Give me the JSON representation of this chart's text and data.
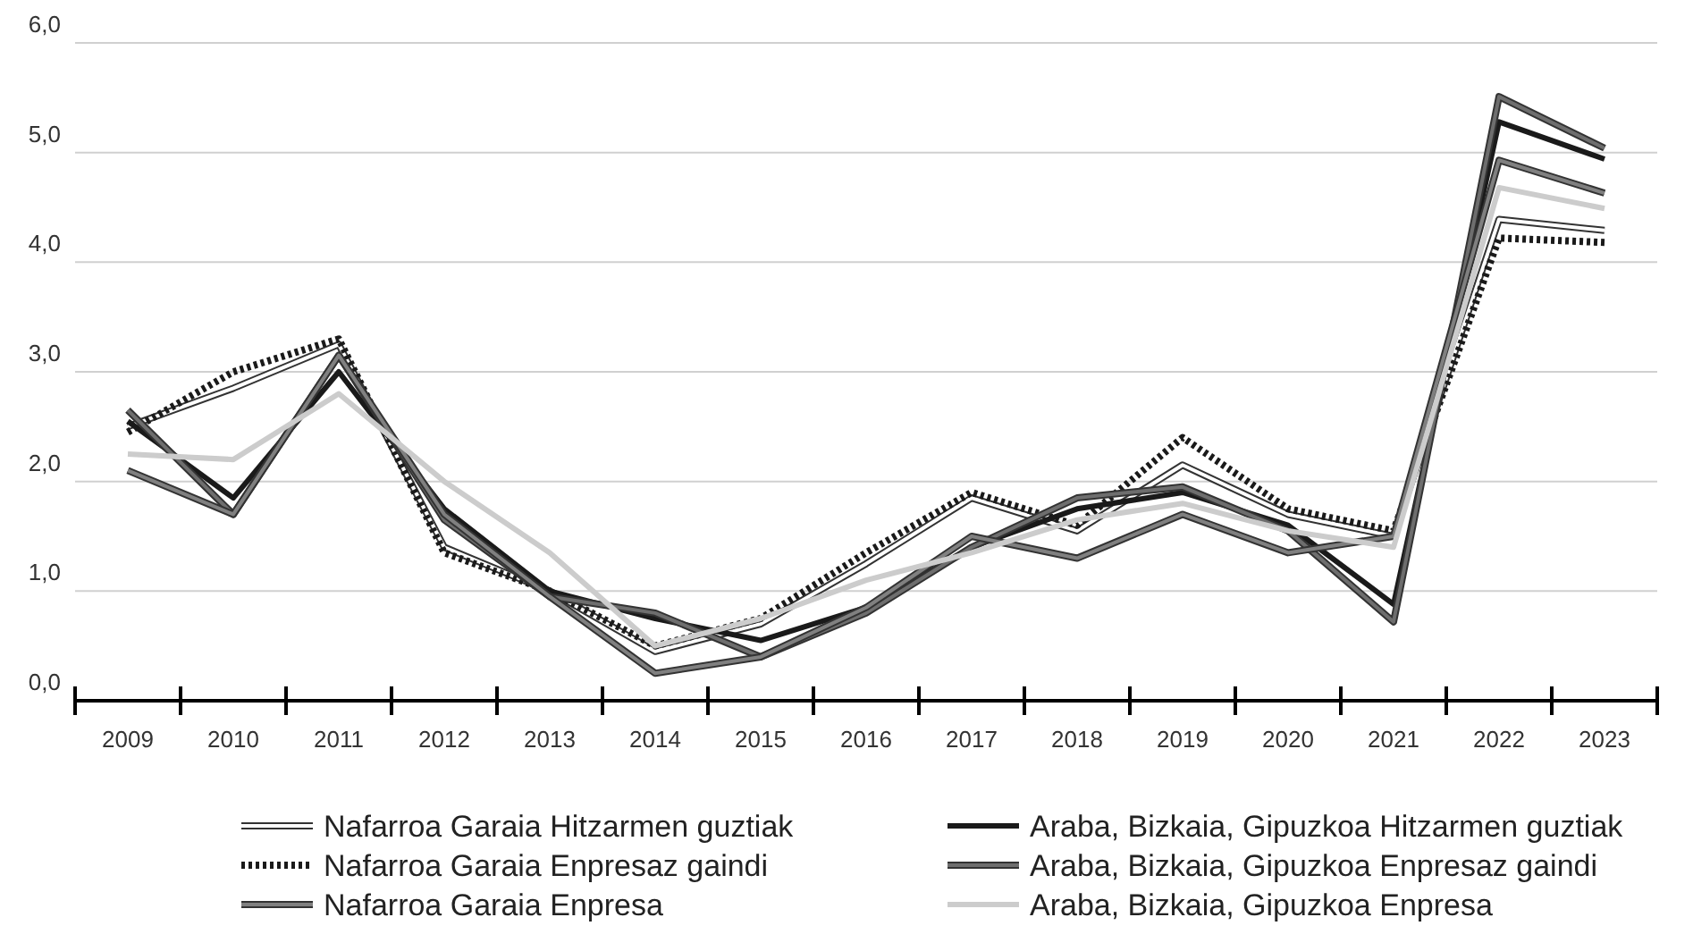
{
  "chart_data": {
    "type": "line",
    "categories": [
      "2009",
      "2010",
      "2011",
      "2012",
      "2013",
      "2014",
      "2015",
      "2016",
      "2017",
      "2018",
      "2019",
      "2020",
      "2021",
      "2022",
      "2023"
    ],
    "ylim": [
      0,
      6
    ],
    "yticks": [
      {
        "value": 0,
        "label": "0,0"
      },
      {
        "value": 1,
        "label": "1,0"
      },
      {
        "value": 2,
        "label": "2,0"
      },
      {
        "value": 3,
        "label": "3,0"
      },
      {
        "value": 4,
        "label": "4,0"
      },
      {
        "value": 5,
        "label": "5,0"
      },
      {
        "value": 6,
        "label": "6,0"
      }
    ],
    "grid": "y",
    "legend": "bottom",
    "marker": "none",
    "series": [
      {
        "name": "Nafarroa Garaia Hitzarmen guztiak",
        "color": "#ffffff",
        "values": [
          2.5,
          2.85,
          3.25,
          1.4,
          1.0,
          0.45,
          0.7,
          1.25,
          1.85,
          1.55,
          2.15,
          1.7,
          1.5,
          4.39,
          4.29
        ]
      },
      {
        "name": "Araba, Bizkaia, Gipuzkoa Hitzarmen guztiak",
        "color": "#1a1a1a",
        "values": [
          2.55,
          1.85,
          3.0,
          1.75,
          1.0,
          0.75,
          0.55,
          0.85,
          1.4,
          1.75,
          1.9,
          1.6,
          0.88,
          5.28,
          4.94
        ]
      },
      {
        "name": "Nafarroa Garaia Enpresaz gaindi",
        "color": "#1a1a1a",
        "line_style": "dotted",
        "values": [
          2.45,
          3.0,
          3.3,
          1.35,
          1.0,
          0.5,
          0.75,
          1.35,
          1.9,
          1.6,
          2.4,
          1.75,
          1.55,
          4.22,
          4.18
        ]
      },
      {
        "name": "Araba, Bizkaia, Gipuzkoa Enpresaz gaindi",
        "color": "#6e6e6e",
        "values": [
          2.65,
          1.7,
          3.15,
          1.65,
          0.95,
          0.8,
          0.4,
          0.8,
          1.4,
          1.85,
          1.95,
          1.55,
          0.72,
          5.51,
          5.04
        ]
      },
      {
        "name": "Nafarroa Garaia Enpresa",
        "color": "#808080",
        "values": [
          2.1,
          1.7,
          3.15,
          1.7,
          0.95,
          0.25,
          0.4,
          0.85,
          1.5,
          1.3,
          1.7,
          1.35,
          1.5,
          4.93,
          4.63
        ]
      },
      {
        "name": "Araba, Bizkaia, Gipuzkoa Enpresa",
        "color": "#cccccc",
        "values": [
          2.25,
          2.2,
          2.8,
          2.0,
          1.35,
          0.5,
          0.75,
          1.1,
          1.35,
          1.65,
          1.8,
          1.55,
          1.4,
          4.68,
          4.49
        ]
      }
    ]
  }
}
